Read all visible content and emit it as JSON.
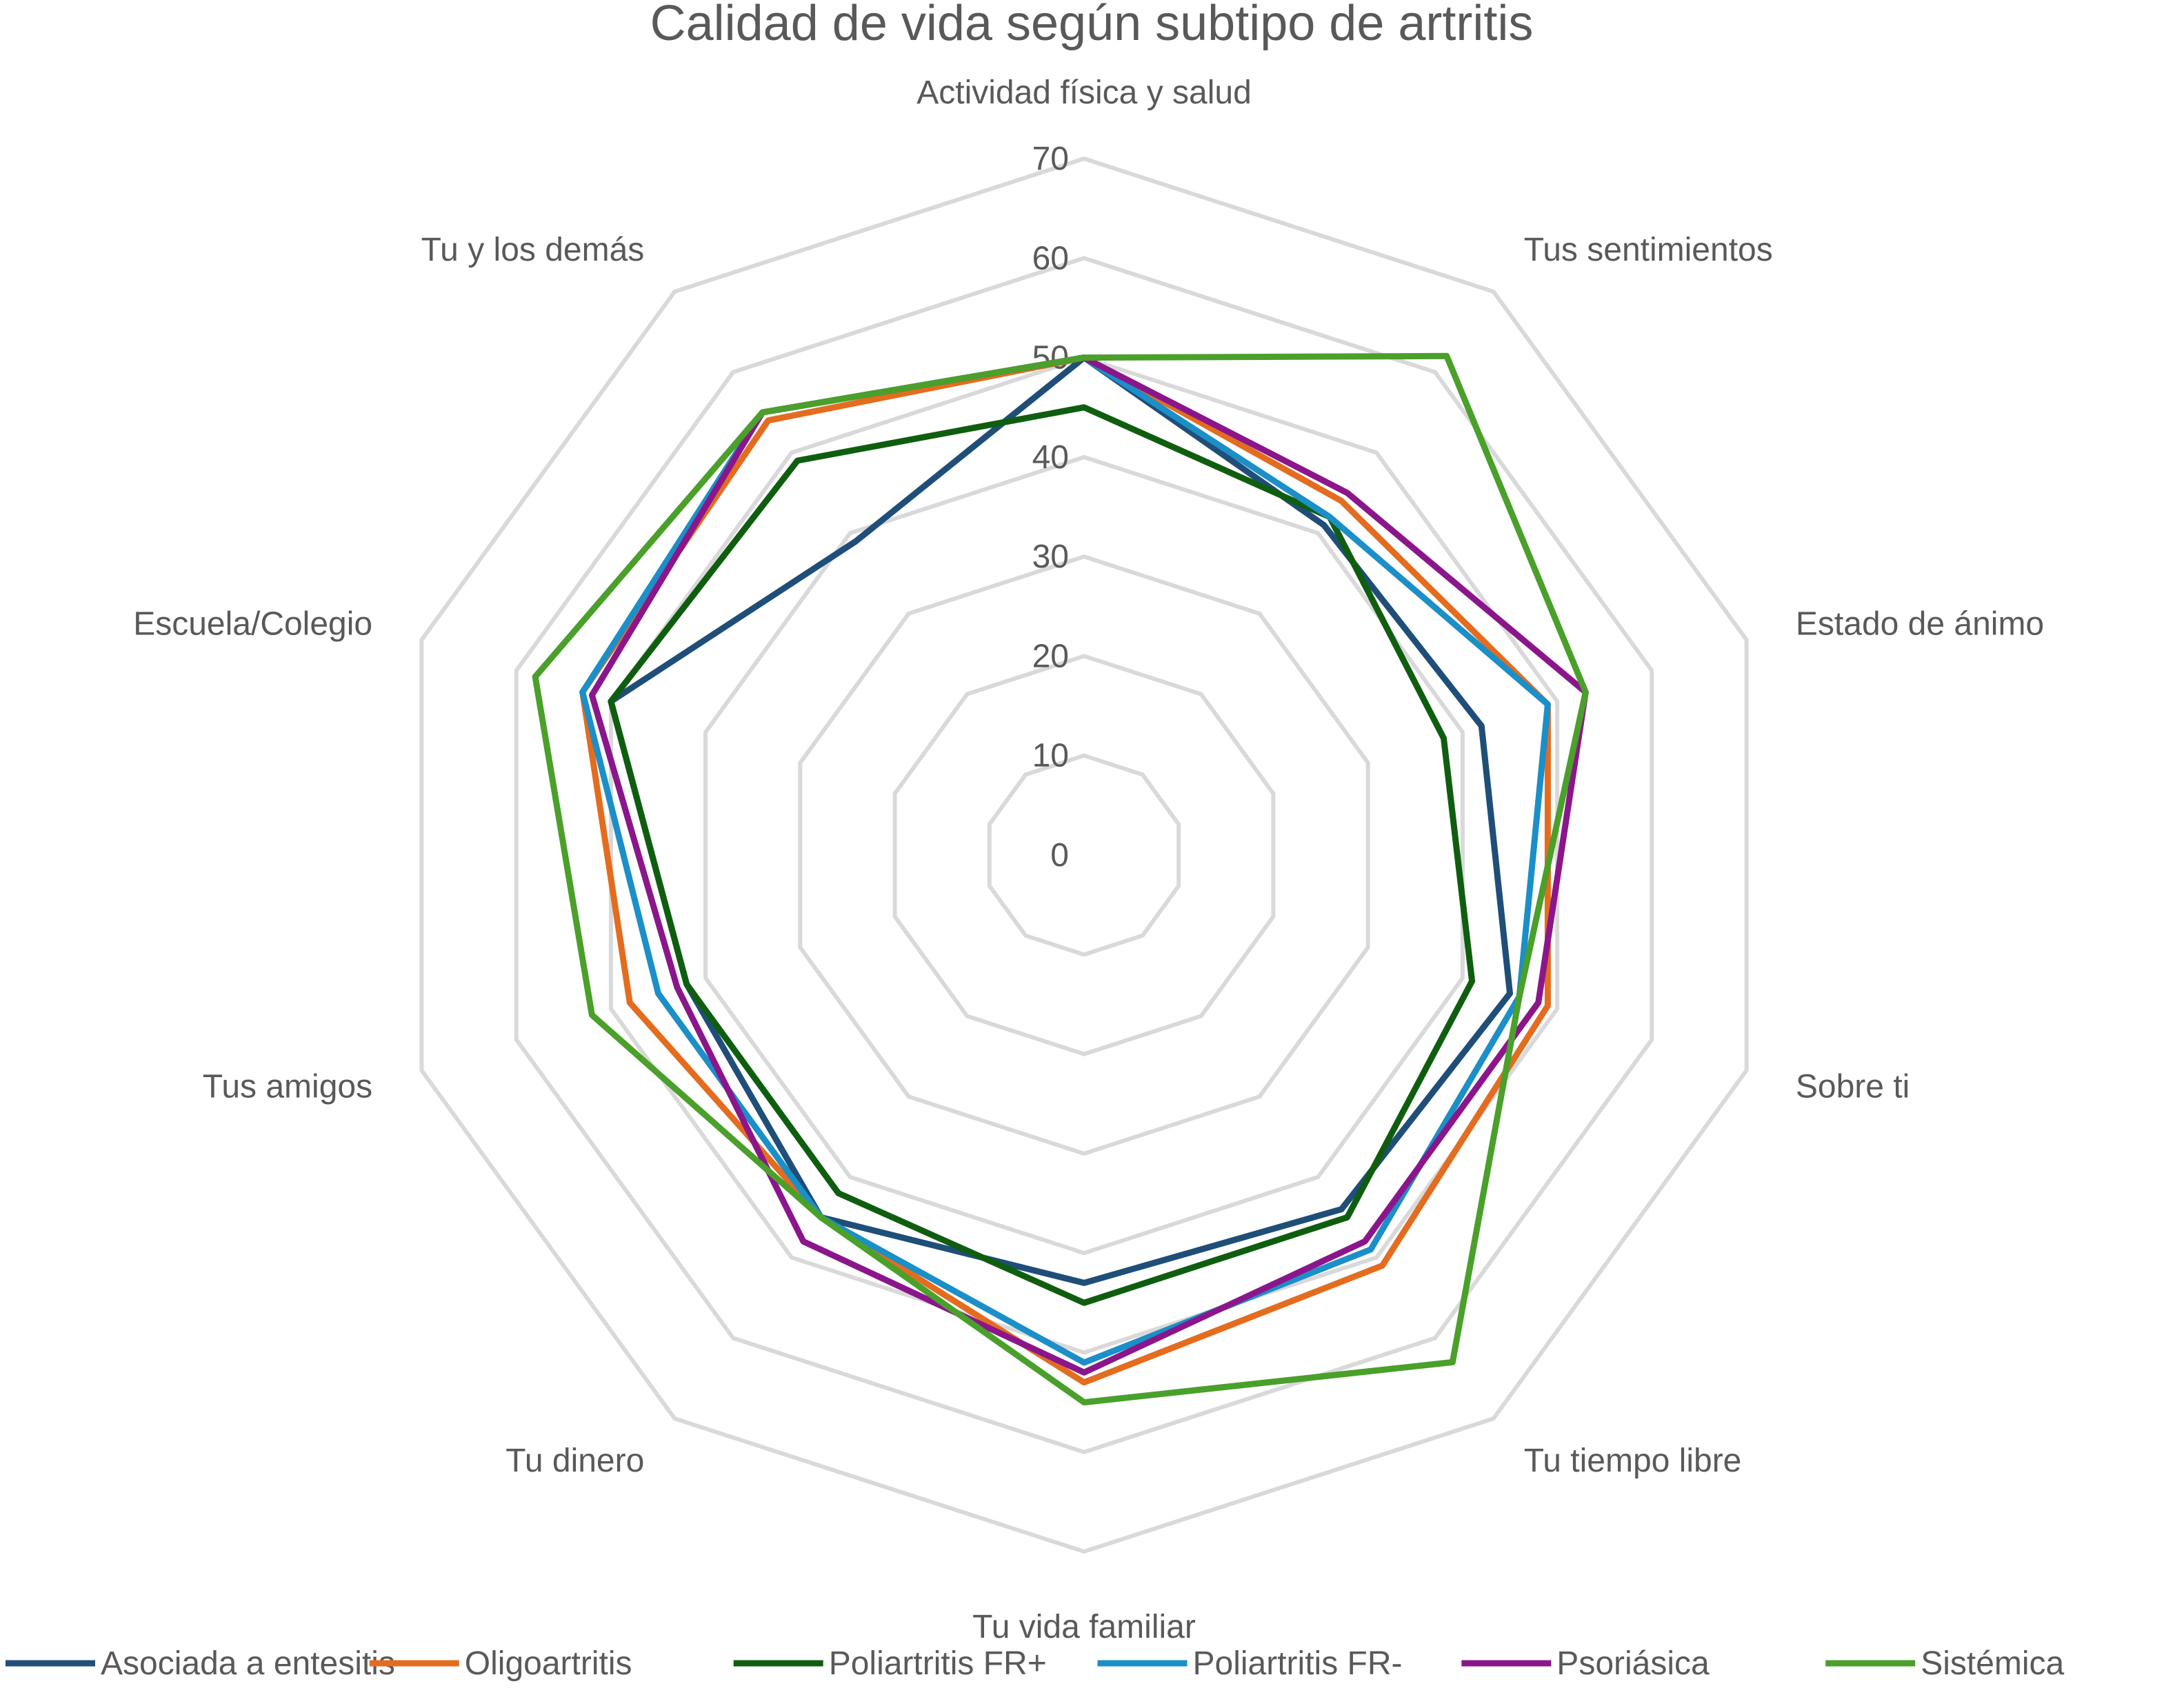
{
  "chart_data": {
    "type": "radar",
    "title": "Calidad de vida según subtipo de artritis",
    "categories": [
      "Actividad física y salud",
      "Tus sentimientos",
      "Estado de ánimo",
      "Sobre ti",
      "Tu tiempo libre",
      "Tu vida familiar",
      "Tu dinero",
      "Tus amigos",
      "Escuela/Colegio",
      "Tu y los demás"
    ],
    "r_ticks": [
      0,
      10,
      20,
      30,
      40,
      50,
      60,
      70
    ],
    "rlim": [
      0,
      70
    ],
    "grid": true,
    "legend_position": "bottom",
    "series": [
      {
        "name": "Asociada a entesitis",
        "color": "#1f4e79",
        "values": [
          50,
          41,
          42,
          45,
          44,
          43,
          45,
          42,
          50,
          39
        ]
      },
      {
        "name": "Oligoartritis",
        "color": "#e46c1f",
        "values": [
          50,
          44,
          49,
          49,
          51,
          53,
          45,
          48,
          53,
          54
        ]
      },
      {
        "name": "Poliartritis FR+",
        "color": "#0f5e0f",
        "values": [
          45,
          42,
          38,
          41,
          45,
          45,
          42,
          42,
          50,
          49
        ]
      },
      {
        "name": "Poliartritis FR-",
        "color": "#1b8fc8",
        "values": [
          50,
          42,
          49,
          46,
          49,
          51,
          45,
          45,
          53,
          55
        ]
      },
      {
        "name": "Psoriásica",
        "color": "#8b168b",
        "values": [
          50,
          45,
          53,
          48,
          48,
          52,
          48,
          43,
          52,
          55
        ]
      },
      {
        "name": "Sistémica",
        "color": "#4aa02a",
        "values": [
          50,
          62,
          53,
          46,
          63,
          55,
          45,
          52,
          58,
          55
        ]
      }
    ]
  }
}
